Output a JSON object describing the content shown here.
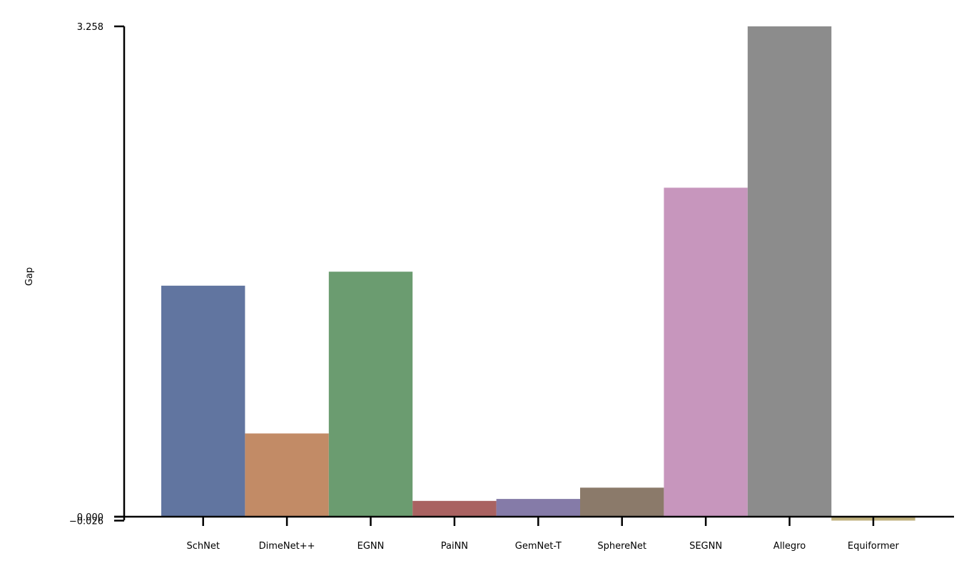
{
  "chart_data": {
    "type": "bar",
    "title": "",
    "xlabel": "",
    "ylabel": "Gap",
    "categories": [
      "SchNet",
      "DimeNet++",
      "EGNN",
      "PaiNN",
      "GemNet-T",
      "SphereNet",
      "SEGNN",
      "Allegro",
      "Equiformer"
    ],
    "values": [
      1.535,
      0.553,
      1.628,
      0.105,
      0.118,
      0.193,
      2.186,
      3.258,
      -0.026
    ],
    "colors": [
      "#6175a0",
      "#c28b66",
      "#6b9c70",
      "#a96261",
      "#857ba8",
      "#8b7a6a",
      "#c796bd",
      "#8c8c8c",
      "#c1b27e"
    ],
    "y_ticks": [
      -0.026,
      0.0,
      3.258
    ],
    "y_tick_labels": [
      "−0.026",
      "0.000",
      "3.258"
    ],
    "ylim": [
      -0.026,
      3.258
    ],
    "grid": false,
    "legend": "none"
  }
}
